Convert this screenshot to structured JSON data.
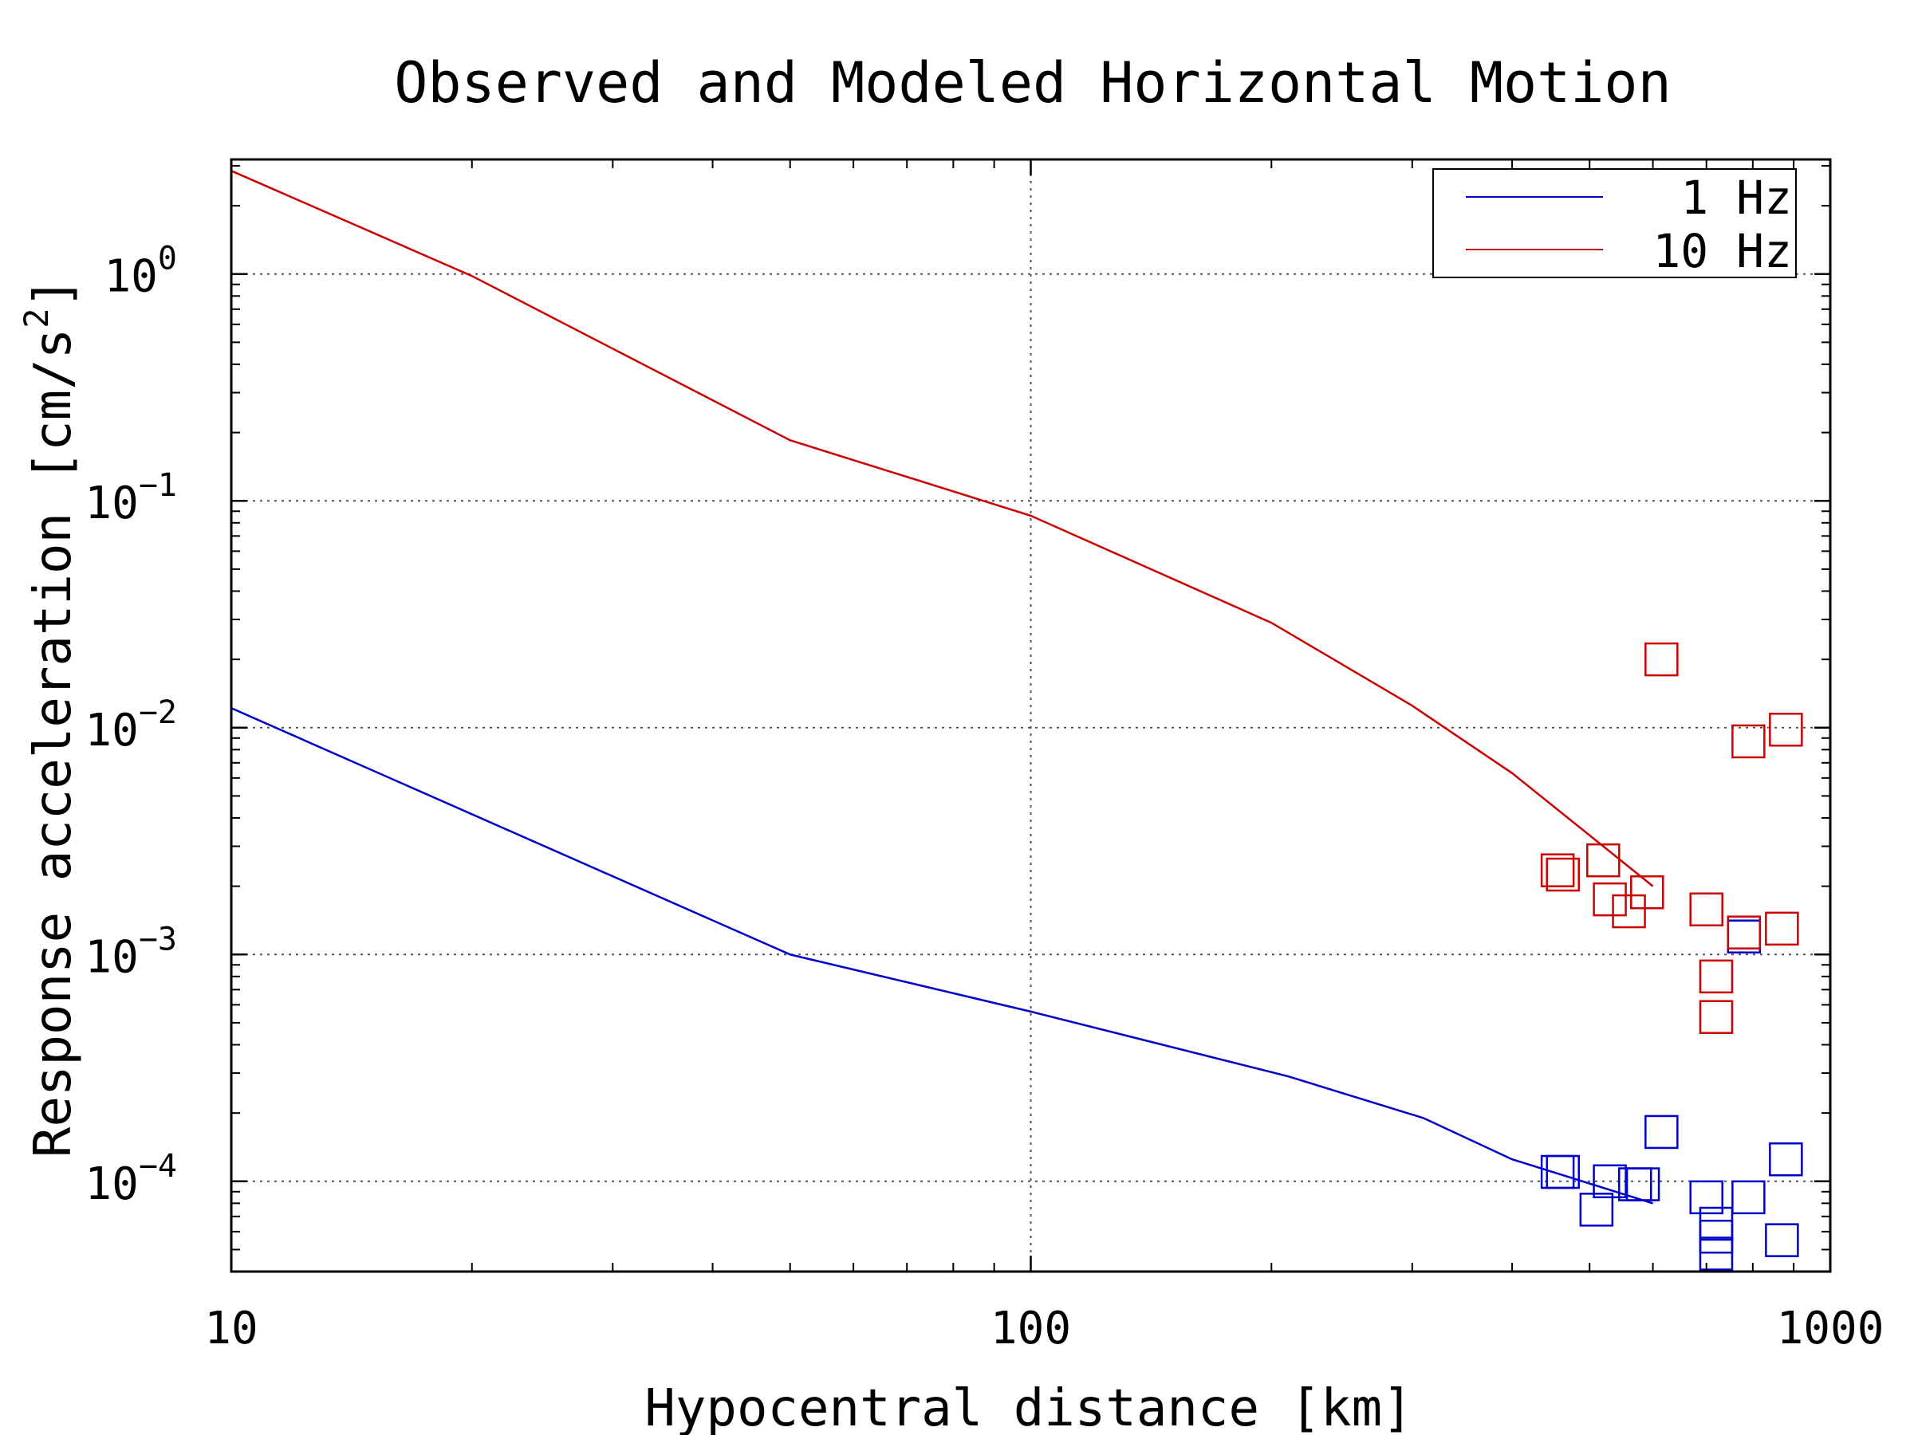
{
  "chart_data": {
    "type": "line",
    "title": "Observed and Modeled Horizontal Motion",
    "xlabel": "Hypocentral distance [km]",
    "ylabel_text": "Response acceleration [cm/s",
    "ylabel_sup": "2",
    "ylabel_close": "]",
    "xscale": "log",
    "yscale": "log",
    "xlim": [
      10,
      1000
    ],
    "ylim": [
      4e-05,
      3.2
    ],
    "grid": true,
    "legend_position": "top-right",
    "x_ticks": [
      {
        "value": 10,
        "label": "10"
      },
      {
        "value": 100,
        "label": "100"
      },
      {
        "value": 1000,
        "label": "1000"
      }
    ],
    "y_ticks": [
      {
        "value": 1,
        "base": "10",
        "exp": "0"
      },
      {
        "value": 0.1,
        "base": "10",
        "exp": "−1"
      },
      {
        "value": 0.01,
        "base": "10",
        "exp": "−2"
      },
      {
        "value": 0.001,
        "base": "10",
        "exp": "−3"
      },
      {
        "value": 0.0001,
        "base": "10",
        "exp": "−4"
      }
    ],
    "series": [
      {
        "name": "1 Hz",
        "color": "#0000cc",
        "model": [
          [
            10,
            0.0122
          ],
          [
            50,
            0.001
          ],
          [
            100,
            0.00056
          ],
          [
            210,
            0.00029
          ],
          [
            310,
            0.00019
          ],
          [
            400,
            0.000125
          ],
          [
            600,
            8e-05
          ]
        ],
        "observed": [
          [
            456,
            0.00011
          ],
          [
            463,
            0.00011
          ],
          [
            530,
            0.0001
          ],
          [
            510,
            7.5e-05
          ],
          [
            570,
            9.7e-05
          ],
          [
            583,
            9.7e-05
          ],
          [
            615,
            0.000165
          ],
          [
            700,
            8.5e-05
          ],
          [
            720,
            6.5e-05
          ],
          [
            720,
            5.7e-05
          ],
          [
            720,
            4.8e-05
          ],
          [
            780,
            0.0012
          ],
          [
            790,
            8.5e-05
          ],
          [
            870,
            5.5e-05
          ],
          [
            880,
            0.000125
          ]
        ]
      },
      {
        "name": "10 Hz",
        "color": "#cc0000",
        "model": [
          [
            10,
            2.85
          ],
          [
            20,
            0.98
          ],
          [
            50,
            0.185
          ],
          [
            100,
            0.086
          ],
          [
            200,
            0.029
          ],
          [
            300,
            0.0125
          ],
          [
            400,
            0.0063
          ],
          [
            600,
            0.002
          ]
        ],
        "observed": [
          [
            456,
            0.00235
          ],
          [
            463,
            0.00225
          ],
          [
            520,
            0.0026
          ],
          [
            530,
            0.00175
          ],
          [
            560,
            0.00155
          ],
          [
            590,
            0.00188
          ],
          [
            615,
            0.02
          ],
          [
            700,
            0.00158
          ],
          [
            720,
            0.0008
          ],
          [
            720,
            0.00053
          ],
          [
            780,
            0.00125
          ],
          [
            790,
            0.0087
          ],
          [
            870,
            0.0013
          ],
          [
            880,
            0.0098
          ]
        ]
      }
    ]
  }
}
